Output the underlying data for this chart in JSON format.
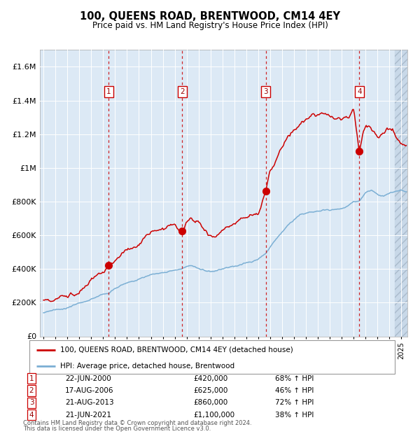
{
  "title": "100, QUEENS ROAD, BRENTWOOD, CM14 4EY",
  "subtitle": "Price paid vs. HM Land Registry's House Price Index (HPI)",
  "footer1": "Contains HM Land Registry data © Crown copyright and database right 2024.",
  "footer2": "This data is licensed under the Open Government Licence v3.0.",
  "legend_line1": "100, QUEENS ROAD, BRENTWOOD, CM14 4EY (detached house)",
  "legend_line2": "HPI: Average price, detached house, Brentwood",
  "sale_events": [
    {
      "num": 1,
      "date": "22-JUN-2000",
      "price": 420000,
      "price_str": "£420,000",
      "pct": "68%",
      "year": 2000.47
    },
    {
      "num": 2,
      "date": "17-AUG-2006",
      "price": 625000,
      "price_str": "£625,000",
      "pct": "46%",
      "year": 2006.63
    },
    {
      "num": 3,
      "date": "21-AUG-2013",
      "price": 860000,
      "price_str": "£860,000",
      "pct": "72%",
      "year": 2013.63
    },
    {
      "num": 4,
      "date": "21-JUN-2021",
      "price": 1100000,
      "price_str": "£1,100,000",
      "pct": "38%",
      "year": 2021.47
    }
  ],
  "ylim": [
    0,
    1700000
  ],
  "xlim_start": 1994.7,
  "xlim_end": 2025.5,
  "hatch_start": 2024.42,
  "plot_bg": "#dce9f5",
  "red_line_color": "#cc0000",
  "blue_line_color": "#7bafd4",
  "dashed_line_color": "#cc0000",
  "ytick_labels": [
    "£0",
    "£200K",
    "£400K",
    "£600K",
    "£800K",
    "£1M",
    "£1.2M",
    "£1.4M",
    "£1.6M"
  ],
  "ytick_values": [
    0,
    200000,
    400000,
    600000,
    800000,
    1000000,
    1200000,
    1400000,
    1600000
  ],
  "red_anchors_x": [
    1995.0,
    1996.0,
    1997.0,
    1998.0,
    1999.0,
    2000.0,
    2000.47,
    2001.0,
    2002.0,
    2003.0,
    2004.0,
    2005.0,
    2005.5,
    2006.0,
    2006.63,
    2007.0,
    2007.5,
    2008.0,
    2008.5,
    2009.0,
    2009.5,
    2010.0,
    2010.5,
    2011.0,
    2011.5,
    2012.0,
    2012.5,
    2013.0,
    2013.63,
    2014.0,
    2014.5,
    2015.0,
    2015.5,
    2016.0,
    2016.5,
    2017.0,
    2017.5,
    2018.0,
    2018.5,
    2019.0,
    2019.5,
    2020.0,
    2020.5,
    2021.0,
    2021.47,
    2021.8,
    2022.0,
    2022.3,
    2022.6,
    2023.0,
    2023.3,
    2023.6,
    2024.0,
    2024.3,
    2024.6,
    2025.0,
    2025.3
  ],
  "red_anchors_y": [
    215000,
    230000,
    245000,
    275000,
    325000,
    380000,
    420000,
    450000,
    510000,
    550000,
    595000,
    635000,
    660000,
    680000,
    625000,
    680000,
    710000,
    690000,
    645000,
    610000,
    600000,
    635000,
    655000,
    670000,
    690000,
    700000,
    715000,
    730000,
    860000,
    980000,
    1050000,
    1130000,
    1180000,
    1220000,
    1260000,
    1280000,
    1310000,
    1310000,
    1330000,
    1310000,
    1300000,
    1295000,
    1310000,
    1355000,
    1100000,
    1220000,
    1250000,
    1240000,
    1210000,
    1190000,
    1200000,
    1210000,
    1230000,
    1220000,
    1180000,
    1160000,
    1155000
  ],
  "blue_anchors_x": [
    1995.0,
    1996.0,
    1997.0,
    1998.0,
    1999.0,
    2000.0,
    2000.47,
    2001.0,
    2002.0,
    2003.0,
    2004.0,
    2005.0,
    2006.0,
    2006.63,
    2007.0,
    2007.5,
    2008.0,
    2008.5,
    2009.0,
    2009.5,
    2010.0,
    2010.5,
    2011.0,
    2011.5,
    2012.0,
    2012.5,
    2013.0,
    2013.63,
    2014.0,
    2014.5,
    2015.0,
    2015.5,
    2016.0,
    2016.5,
    2017.0,
    2017.5,
    2018.0,
    2018.5,
    2019.0,
    2019.5,
    2020.0,
    2020.5,
    2021.0,
    2021.47,
    2022.0,
    2022.5,
    2023.0,
    2023.5,
    2024.0,
    2024.5,
    2025.0,
    2025.3
  ],
  "blue_anchors_y": [
    140000,
    155000,
    172000,
    195000,
    220000,
    248000,
    258000,
    285000,
    315000,
    340000,
    368000,
    382000,
    392000,
    398000,
    415000,
    420000,
    405000,
    390000,
    385000,
    388000,
    400000,
    410000,
    420000,
    428000,
    435000,
    443000,
    458000,
    490000,
    530000,
    575000,
    620000,
    660000,
    695000,
    720000,
    732000,
    742000,
    748000,
    752000,
    750000,
    752000,
    758000,
    775000,
    800000,
    805000,
    855000,
    870000,
    845000,
    832000,
    850000,
    858000,
    865000,
    855000
  ]
}
